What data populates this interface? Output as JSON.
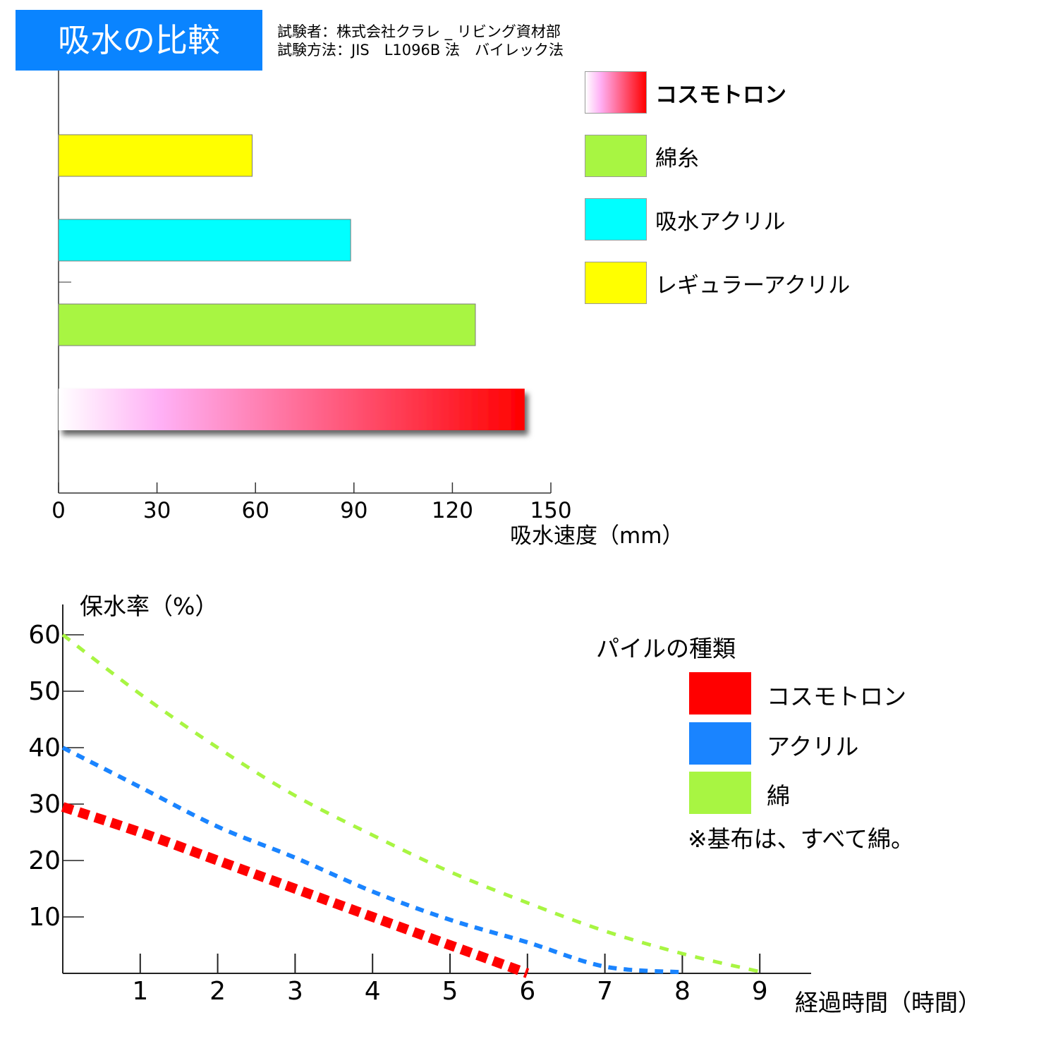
{
  "chart_data": [
    {
      "type": "bar",
      "orientation": "horizontal",
      "title": "吸水の比較",
      "notes": [
        "試験者：株式会社クラレ _ リビング資材部",
        "試験方法：JIS　L1096B 法　バイレック法"
      ],
      "xlabel": "吸水速度（mm）",
      "xlim": [
        0,
        150
      ],
      "xticks": [
        "0",
        "30",
        "60",
        "90",
        "120",
        "150"
      ],
      "grid": false,
      "legend_position": "right",
      "categories": [
        "レギュラーアクリル",
        "吸水アクリル",
        "綿糸",
        "コスモトロン"
      ],
      "values": [
        59,
        89,
        127,
        142
      ],
      "colors": [
        "#ffff00",
        "#00ffff",
        "#a8f542",
        "gradient:#ffffff-#ffb0f5-#ff0000"
      ],
      "legend": [
        "コスモトロン",
        "綿糸",
        "吸水アクリル",
        "レギュラーアクリル"
      ]
    },
    {
      "type": "line",
      "line_style": "dashed",
      "ylabel": "保水率（%）",
      "xlabel": "経過時間（時間）",
      "xlim": [
        0,
        9.6
      ],
      "ylim": [
        0,
        65
      ],
      "xticks": [
        "1",
        "2",
        "3",
        "4",
        "5",
        "6",
        "7",
        "8",
        "9"
      ],
      "yticks": [
        "10",
        "20",
        "30",
        "40",
        "50",
        "60"
      ],
      "legend_title": "パイルの種類",
      "legend_position": "right",
      "note": "※基布は、すべて綿。",
      "series": [
        {
          "name": "コスモトロン",
          "color": "#ff0000",
          "x": [
            0,
            1,
            2,
            3,
            4,
            5,
            6
          ],
          "y": [
            29.5,
            25,
            20,
            15,
            10,
            5,
            0
          ]
        },
        {
          "name": "アクリル",
          "color": "#1a84ff",
          "x": [
            0,
            1,
            2,
            3,
            4,
            5,
            6,
            7,
            8
          ],
          "y": [
            40,
            33,
            26,
            20.5,
            14.5,
            9.5,
            5.5,
            1.2,
            0.2
          ]
        },
        {
          "name": "綿",
          "color": "#a8f542",
          "x": [
            0,
            1,
            2,
            3,
            4,
            5,
            6,
            7,
            8,
            9
          ],
          "y": [
            60,
            49.5,
            40,
            31.5,
            24.5,
            18,
            12.5,
            7.5,
            3.5,
            0.3
          ]
        }
      ]
    }
  ]
}
